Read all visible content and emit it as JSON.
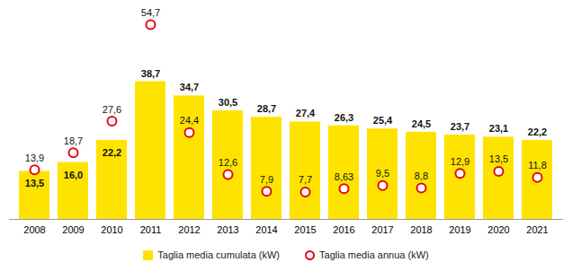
{
  "chart_data": {
    "type": "bar",
    "categories": [
      "2008",
      "2009",
      "2010",
      "2011",
      "2012",
      "2013",
      "2014",
      "2015",
      "2016",
      "2017",
      "2018",
      "2019",
      "2020",
      "2021"
    ],
    "series": [
      {
        "name": "Taglia media cumulata (kW)",
        "type": "bar",
        "marker": "square",
        "color": "#FFE300",
        "values": [
          13.5,
          16.0,
          22.2,
          38.7,
          34.7,
          30.5,
          28.7,
          27.4,
          26.3,
          25.4,
          24.5,
          23.7,
          23.1,
          22.2
        ],
        "value_labels": [
          "13,5",
          "16,0",
          "22,2",
          "38,7",
          "34,7",
          "30,5",
          "28,7",
          "27,4",
          "26,3",
          "25,4",
          "24,5",
          "23,7",
          "23,1",
          "22,2"
        ]
      },
      {
        "name": "Taglia media annua (kW)",
        "type": "scatter",
        "marker": "circle",
        "color": "#E30613",
        "values": [
          13.9,
          18.7,
          27.6,
          54.7,
          24.4,
          12.6,
          7.9,
          7.7,
          8.63,
          9.5,
          8.8,
          12.9,
          13.5,
          11.8
        ],
        "value_labels": [
          "13,9",
          "18,7",
          "27,6",
          "54,7",
          "24,4",
          "12,6",
          "7,9",
          "7,7",
          "8,63",
          "9,5",
          "8,8",
          "12,9",
          "13,5",
          "11,8"
        ]
      }
    ],
    "ylim": [
      0,
      60
    ],
    "tick_labels": "x",
    "grid": false,
    "data_labels": true,
    "legend": "bottom"
  }
}
